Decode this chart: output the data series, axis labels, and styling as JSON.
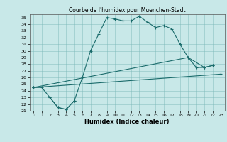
{
  "title": "Courbe de l'humidex pour Muenchen-Stadt",
  "xlabel": "Humidex (Indice chaleur)",
  "bg_color": "#c8e8e8",
  "grid_color": "#7ab8b8",
  "line_color": "#1a6b6b",
  "xlim": [
    -0.5,
    23.5
  ],
  "ylim": [
    21,
    35.5
  ],
  "xticks": [
    0,
    1,
    2,
    3,
    4,
    5,
    6,
    7,
    8,
    9,
    10,
    11,
    12,
    13,
    14,
    15,
    16,
    17,
    18,
    19,
    20,
    21,
    22,
    23
  ],
  "yticks": [
    21,
    22,
    23,
    24,
    25,
    26,
    27,
    28,
    29,
    30,
    31,
    32,
    33,
    34,
    35
  ],
  "line1_x": [
    0,
    1,
    2,
    3,
    4,
    5,
    6,
    7,
    8,
    9,
    10,
    11,
    12,
    13,
    14,
    15,
    16,
    17,
    18,
    19,
    20,
    21,
    22
  ],
  "line1_y": [
    24.5,
    24.5,
    23.0,
    21.5,
    21.2,
    22.5,
    26.0,
    30.0,
    32.5,
    35.0,
    34.8,
    34.5,
    34.5,
    35.2,
    34.3,
    33.5,
    33.8,
    33.3,
    31.0,
    29.0,
    27.5,
    27.5,
    27.8
  ],
  "line2_x": [
    0,
    23
  ],
  "line2_y": [
    24.5,
    26.5
  ],
  "line3_x": [
    0,
    19,
    21,
    22
  ],
  "line3_y": [
    24.5,
    29.0,
    27.5,
    27.8
  ],
  "line4_x": [
    2,
    3,
    4,
    5
  ],
  "line4_y": [
    23.0,
    21.5,
    21.2,
    22.5
  ],
  "title_fontsize": 5.5,
  "xlabel_fontsize": 6,
  "tick_fontsize": 4.5
}
